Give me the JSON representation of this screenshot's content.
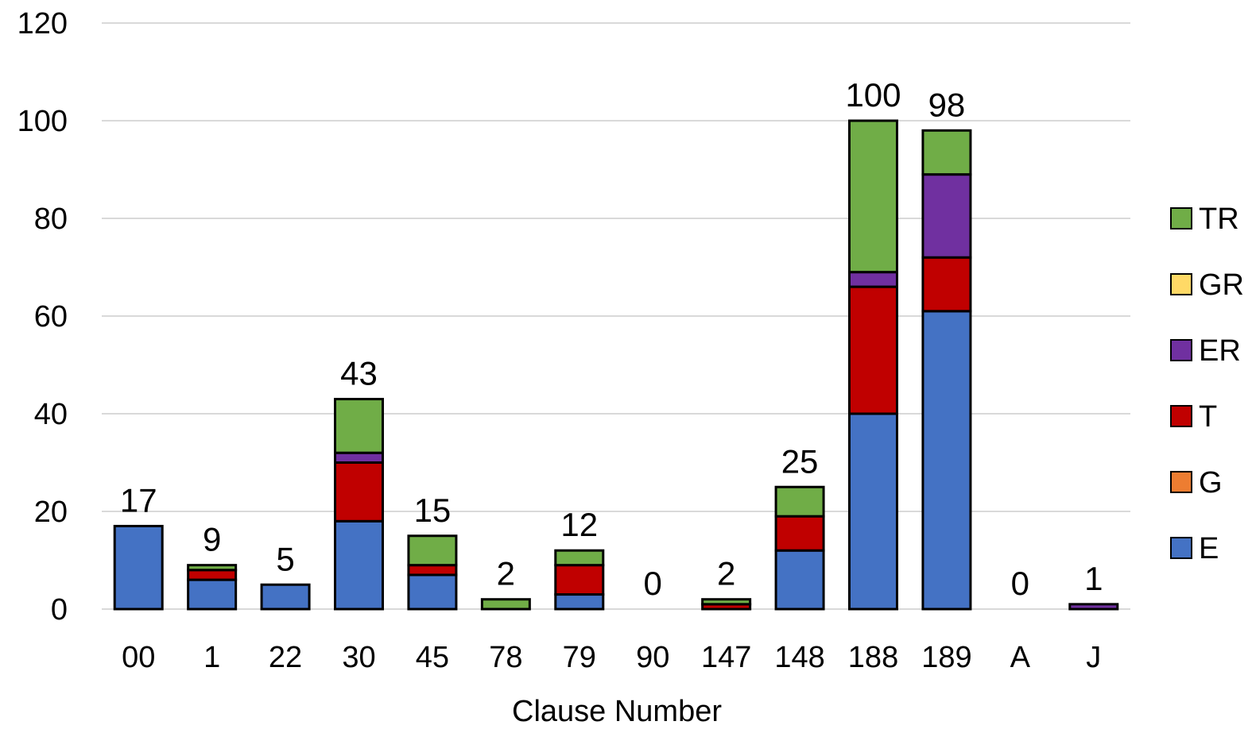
{
  "chart_data": {
    "type": "bar",
    "stacked": true,
    "title": "",
    "xlabel": "Clause Number",
    "ylabel": "",
    "ylim": [
      0,
      120
    ],
    "yticks": [
      "0",
      "20",
      "40",
      "60",
      "80",
      "100",
      "120"
    ],
    "grid": true,
    "legend_position": "right",
    "categories": [
      "00",
      "1",
      "22",
      "30",
      "45",
      "78",
      "79",
      "90",
      "147",
      "148",
      "188",
      "189",
      "A",
      "J"
    ],
    "totals": [
      "17",
      "9",
      "5",
      "43",
      "15",
      "2",
      "12",
      "0",
      "2",
      "25",
      "100",
      "98",
      "0",
      "1"
    ],
    "series": [
      {
        "name": "E",
        "color": "#4472C4",
        "values": [
          17,
          6,
          5,
          18,
          7,
          0,
          3,
          0,
          0,
          12,
          40,
          61,
          0,
          0
        ]
      },
      {
        "name": "G",
        "color": "#ED7D31",
        "values": [
          0,
          0,
          0,
          0,
          0,
          0,
          0,
          0,
          0,
          0,
          0,
          0,
          0,
          0
        ]
      },
      {
        "name": "T",
        "color": "#C00000",
        "values": [
          0,
          2,
          0,
          12,
          2,
          0,
          6,
          0,
          1,
          7,
          26,
          11,
          0,
          0
        ]
      },
      {
        "name": "ER",
        "color": "#7030A0",
        "values": [
          0,
          0,
          0,
          2,
          0,
          0,
          0,
          0,
          0,
          0,
          3,
          17,
          0,
          1
        ]
      },
      {
        "name": "GR",
        "color": "#FFD966",
        "values": [
          0,
          0,
          0,
          0,
          0,
          0,
          0,
          0,
          0,
          0,
          0,
          0,
          0,
          0
        ]
      },
      {
        "name": "TR",
        "color": "#70AD47",
        "values": [
          0,
          1,
          0,
          11,
          6,
          2,
          3,
          0,
          1,
          6,
          31,
          9,
          0,
          0
        ]
      }
    ]
  }
}
